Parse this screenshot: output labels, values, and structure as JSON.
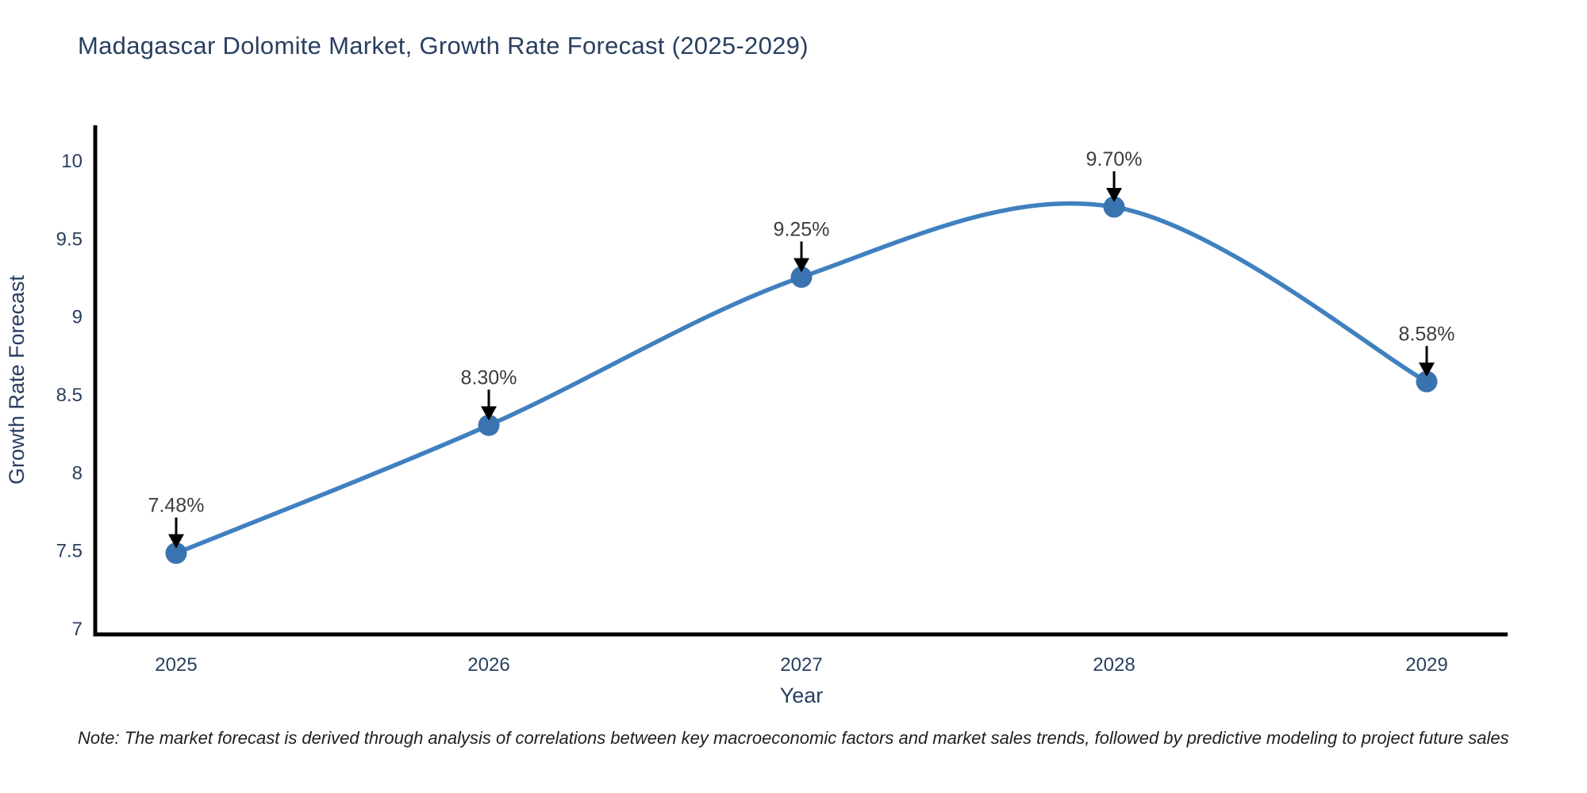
{
  "chart_data": {
    "type": "line",
    "title": "Madagascar Dolomite Market, Growth Rate Forecast (2025-2029)",
    "xlabel": "Year",
    "ylabel": "Growth Rate Forecast",
    "categories": [
      "2025",
      "2026",
      "2027",
      "2028",
      "2029"
    ],
    "series": [
      {
        "name": "Growth Rate Forecast",
        "values": [
          7.48,
          8.3,
          9.25,
          9.7,
          8.58
        ]
      }
    ],
    "point_labels": [
      "7.48%",
      "8.30%",
      "9.25%",
      "9.70%",
      "8.58%"
    ],
    "y_ticks": [
      7,
      7.5,
      8,
      8.5,
      9,
      9.5,
      10
    ],
    "y_tick_labels": [
      "7",
      "7.5",
      "8",
      "8.5",
      "9",
      "9.5",
      "10"
    ],
    "ylim": [
      7,
      10
    ],
    "grid": false,
    "legend": "none",
    "line_shape": "spline",
    "annotation_arrows": true,
    "colors": {
      "line": "#4080bf",
      "marker": "#3a74b0",
      "axis": "#000000",
      "title_text": "#2a3f5f",
      "tick_text": "#2a3f5f",
      "axis_label_text": "#2a3f5f",
      "annotation_text": "#3d3d3d",
      "arrow": "#000000",
      "background": "#ffffff"
    },
    "note": "Note: The market forecast is derived through analysis of correlations between key macroeconomic factors and market sales trends, followed by predictive modeling to project future sales"
  }
}
